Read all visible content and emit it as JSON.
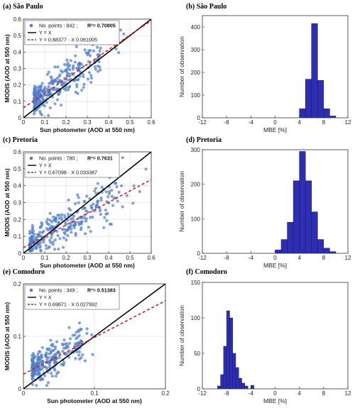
{
  "chart_data": [
    {
      "id": "a",
      "type": "scatter",
      "title": "(a) São Paulo",
      "xlabel": "Sun photometer (AOD at 550 nm)",
      "ylabel": "MODIS (AOD at 550 nm)",
      "xlim": [
        0,
        0.6
      ],
      "ylim": [
        0,
        0.6
      ],
      "xticks": [
        "0",
        "0.1",
        "0.2",
        "0.3",
        "0.4",
        "0.5",
        "0.6"
      ],
      "yticks": [
        "0",
        "0.1",
        "0.2",
        "0.3",
        "0.4",
        "0.5",
        "0.6"
      ],
      "grid": true,
      "legend_position": "top-left",
      "legend": {
        "points_text": "No. points : 842  ;",
        "r2_label": "R²= 0.70805",
        "one_to_one": "Y = X",
        "fit": "Y = 0.88377 · X 0.061005"
      },
      "n_points": 842,
      "r2": 0.70805,
      "fit": {
        "slope": 0.88377,
        "intercept": 0.061005
      },
      "scatter_model": {
        "x_min": 0.05,
        "x_max": 0.48,
        "x_mode": 0.12,
        "sd": 0.06,
        "n_drawn": 300
      },
      "colors": {
        "points": "#4f7ec8",
        "one_to_one": "#000000",
        "fit": "#cc2222"
      }
    },
    {
      "id": "b",
      "type": "bar",
      "title": "(b) São Paulo",
      "xlabel": "MBE [%]",
      "ylabel": "Number of observation",
      "xlim": [
        -12,
        12
      ],
      "ylim": [
        0,
        450
      ],
      "xticks": [
        "-12",
        "-8",
        "-4",
        "0",
        "4",
        "8",
        "12"
      ],
      "yticks": [
        "0",
        "100",
        "200",
        "300",
        "400"
      ],
      "grid": false,
      "bin_width": 1,
      "bins": [
        {
          "x0": 4,
          "count": 40
        },
        {
          "x0": 5,
          "count": 170
        },
        {
          "x0": 6,
          "count": 415
        },
        {
          "x0": 7,
          "count": 165
        },
        {
          "x0": 8,
          "count": 40
        },
        {
          "x0": 9,
          "count": 8
        }
      ],
      "colors": {
        "bars": "#2e2eb0"
      }
    },
    {
      "id": "c",
      "type": "scatter",
      "title": "(c) Pretoria",
      "xlabel": "Sun photometer (AOD at 550 nm)",
      "ylabel": "MODIS (AOD at 550 nm)",
      "xlim": [
        0,
        0.6
      ],
      "ylim": [
        0,
        0.6
      ],
      "xticks": [
        "0",
        "0.1",
        "0.2",
        "0.3",
        "0.4",
        "0.5",
        "0.6"
      ],
      "yticks": [
        "0",
        "0.1",
        "0.2",
        "0.3",
        "0.4",
        "0.5",
        "0.6"
      ],
      "grid": true,
      "legend_position": "top-left",
      "legend": {
        "points_text": "No. points : 780  ;",
        "r2_label": "R²= 0.7631",
        "one_to_one": "Y = X",
        "fit": "Y = 0.67098 · X 0.033387"
      },
      "n_points": 780,
      "r2": 0.7631,
      "fit": {
        "slope": 0.67098,
        "intercept": 0.033387
      },
      "scatter_model": {
        "x_min": 0.03,
        "x_max": 0.58,
        "x_mode": 0.13,
        "sd": 0.065,
        "n_drawn": 300
      },
      "colors": {
        "points": "#4f7ec8",
        "one_to_one": "#000000",
        "fit": "#cc2222"
      }
    },
    {
      "id": "d",
      "type": "bar",
      "title": "(d) Pretoria",
      "xlabel": "MBE [%]",
      "ylabel": "Number of observation",
      "xlim": [
        -12,
        12
      ],
      "ylim": [
        0,
        300
      ],
      "xticks": [
        "-12",
        "-8",
        "-4",
        "0",
        "4",
        "8",
        "12"
      ],
      "yticks": [
        "0",
        "100",
        "200",
        "300"
      ],
      "grid": false,
      "bin_width": 1,
      "bins": [
        {
          "x0": 0,
          "count": 10
        },
        {
          "x0": 1,
          "count": 40
        },
        {
          "x0": 2,
          "count": 90
        },
        {
          "x0": 3,
          "count": 210
        },
        {
          "x0": 4,
          "count": 295
        },
        {
          "x0": 5,
          "count": 210
        },
        {
          "x0": 6,
          "count": 120
        },
        {
          "x0": 7,
          "count": 40
        },
        {
          "x0": 8,
          "count": 15
        },
        {
          "x0": 9,
          "count": 5
        }
      ],
      "colors": {
        "bars": "#2e2eb0"
      }
    },
    {
      "id": "e",
      "type": "scatter",
      "title": "(e) Comodoro",
      "xlabel": "Sun photometer (AOD at 550 nm)",
      "ylabel": "MODIS (AOD at 550 nm)",
      "xlim": [
        0,
        0.2
      ],
      "ylim": [
        0,
        0.2
      ],
      "xticks": [
        "0",
        "0.1",
        "0.2"
      ],
      "yticks": [
        "0",
        "0.1",
        "0.2"
      ],
      "grid": true,
      "legend_position": "top-left",
      "legend": {
        "points_text": "No. points : 349  ;",
        "r2_label": "R²= 0.51383",
        "one_to_one": "Y = X",
        "fit": "Y = 0.69871 · X 0.027992"
      },
      "n_points": 349,
      "r2": 0.51383,
      "fit": {
        "slope": 0.69871,
        "intercept": 0.027992
      },
      "scatter_model": {
        "x_min": 0.012,
        "x_max": 0.105,
        "x_mode": 0.035,
        "sd": 0.02,
        "n_drawn": 260
      },
      "colors": {
        "points": "#4f7ec8",
        "one_to_one": "#000000",
        "fit": "#cc2222"
      }
    },
    {
      "id": "f",
      "type": "bar",
      "title": "(f) Comodoro",
      "xlabel": "MBE [%]",
      "ylabel": "Number of observation",
      "xlim": [
        -12,
        12
      ],
      "ylim": [
        0,
        150
      ],
      "xticks": [
        "-12",
        "-8",
        "-4",
        "0",
        "4",
        "8",
        "12"
      ],
      "yticks": [
        "0",
        "50",
        "100",
        "150"
      ],
      "grid": false,
      "bin_width": 0.5,
      "bins": [
        {
          "x0": -9.5,
          "count": 4
        },
        {
          "x0": -9.0,
          "count": 20
        },
        {
          "x0": -8.5,
          "count": 60
        },
        {
          "x0": -8.0,
          "count": 110
        },
        {
          "x0": -7.5,
          "count": 100
        },
        {
          "x0": -7.0,
          "count": 50
        },
        {
          "x0": -6.5,
          "count": 30
        },
        {
          "x0": -6.0,
          "count": 15
        },
        {
          "x0": -5.5,
          "count": 8
        },
        {
          "x0": -5.0,
          "count": 4
        },
        {
          "x0": -4.0,
          "count": 5
        }
      ],
      "colors": {
        "bars": "#2e2eb0"
      }
    }
  ]
}
